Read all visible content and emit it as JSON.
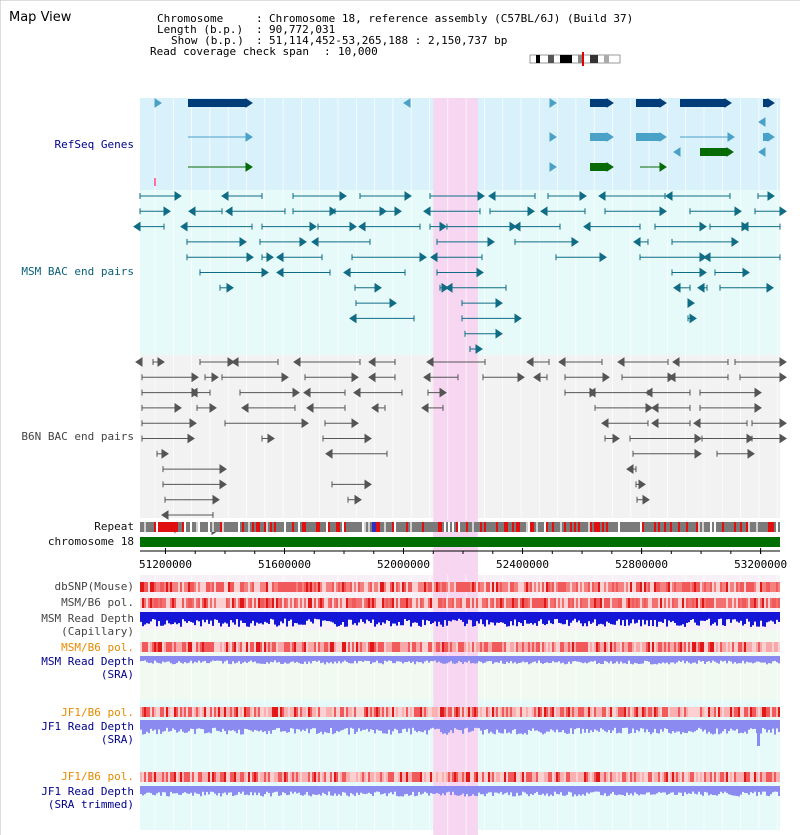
{
  "title": "Map View",
  "header": {
    "chromosome_key": "Chromosome",
    "chromosome_val": "Chromosome 18, reference assembly (C57BL/6J) (Build 37)",
    "length_key": "Length (b.p.)",
    "length_val": "90,772,031",
    "show_key": "Show (b.p.)",
    "show_val": "51,114,452-53,265,188 : 2,150,737 bp",
    "coverage_key": "Read coverage check span",
    "coverage_val": "10,000"
  },
  "tracks": {
    "refseq": "RefSeq Genes",
    "msm_bac": "MSM BAC end pairs",
    "b6n_bac": "B6N BAC end pairs",
    "repeat": "Repeat",
    "chromosome": "chromosome 18",
    "dbsnp": "dbSNP(Mouse)",
    "msm_pol1": "MSM/B6 pol.",
    "msm_depth_cap_1": "MSM Read Depth",
    "msm_depth_cap_2": "(Capillary)",
    "msm_pol2": "MSM/B6 pol.",
    "msm_depth_sra_1": "MSM Read Depth",
    "msm_depth_sra_2": "(SRA)",
    "jf1_pol1": "JF1/B6 pol.",
    "jf1_depth_sra_1": "JF1 Read Depth",
    "jf1_depth_sra_2": "(SRA)",
    "jf1_pol2": "JF1/B6 pol.",
    "jf1_depth_trim_1": "JF1 Read Depth",
    "jf1_depth_trim_2": "(SRA trimmed)"
  },
  "axis": {
    "ticks": [
      "51200000",
      "51600000",
      "52000000",
      "52400000",
      "52800000",
      "53200000"
    ],
    "tick_values": [
      51200000,
      51600000,
      52000000,
      52400000,
      52800000,
      53200000
    ],
    "range": [
      51114452,
      53265188
    ]
  },
  "highlight_range": [
    52100000,
    52250000
  ],
  "colors": {
    "refseq_bg": "#d9f1fb",
    "msm_bg": "#e6fafa",
    "b6n_bg": "#f2f2f2",
    "highlight": "#f6d6f0",
    "gene_dark": "#003c78",
    "gene_light": "#4aa1c8",
    "gene_green": "#066b06",
    "bac_msm": "#0f6c84",
    "bac_b6n": "#555555",
    "repeat_red": "#e01010",
    "repeat_gray": "#7a7a7a",
    "chrom_green": "#006e00",
    "snp": "#e44",
    "depth_dark": "#1515d8",
    "depth_light": "#8a8af0"
  }
}
